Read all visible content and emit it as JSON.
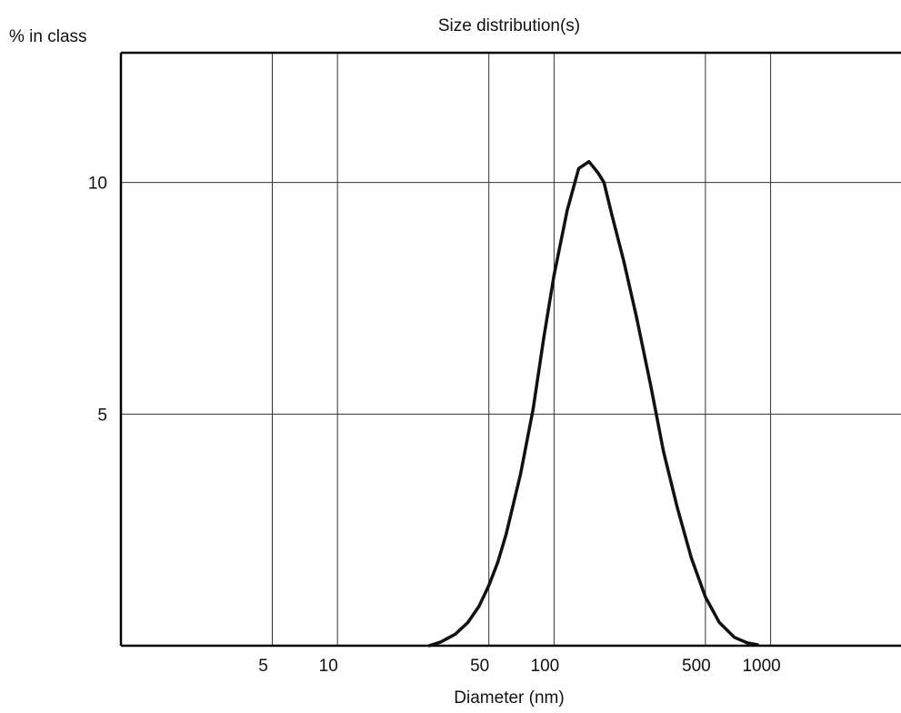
{
  "chart_data": {
    "type": "line",
    "title": "Size distribution(s)",
    "xlabel": "Diameter (nm)",
    "ylabel": "% in class",
    "x_scale": "log",
    "xlim": [
      1,
      4000
    ],
    "ylim": [
      0,
      12.8
    ],
    "grid": true,
    "x_ticks": [
      {
        "value": 5,
        "label": "5"
      },
      {
        "value": 10,
        "label": "10"
      },
      {
        "value": 50,
        "label": "50"
      },
      {
        "value": 100,
        "label": "100"
      },
      {
        "value": 500,
        "label": "500"
      },
      {
        "value": 1000,
        "label": "1000"
      }
    ],
    "y_ticks": [
      {
        "value": 5,
        "label": "5"
      },
      {
        "value": 10,
        "label": "10"
      }
    ],
    "colors": {
      "line": "#111111",
      "grid": "#333333",
      "frame": "#000000"
    },
    "series": [
      {
        "x": [
          26.5,
          30,
          35,
          40,
          45,
          50,
          55,
          60,
          70,
          80,
          90,
          100,
          115,
          130,
          145,
          160,
          170,
          185,
          210,
          240,
          280,
          320,
          370,
          430,
          500,
          580,
          680,
          780,
          870
        ],
        "y": [
          0,
          0.08,
          0.25,
          0.5,
          0.85,
          1.3,
          1.8,
          2.4,
          3.7,
          5.1,
          6.7,
          8.0,
          9.4,
          10.3,
          10.45,
          10.2,
          10.0,
          9.3,
          8.3,
          7.1,
          5.6,
          4.2,
          3.0,
          1.9,
          1.05,
          0.5,
          0.18,
          0.06,
          0.02
        ]
      }
    ]
  }
}
